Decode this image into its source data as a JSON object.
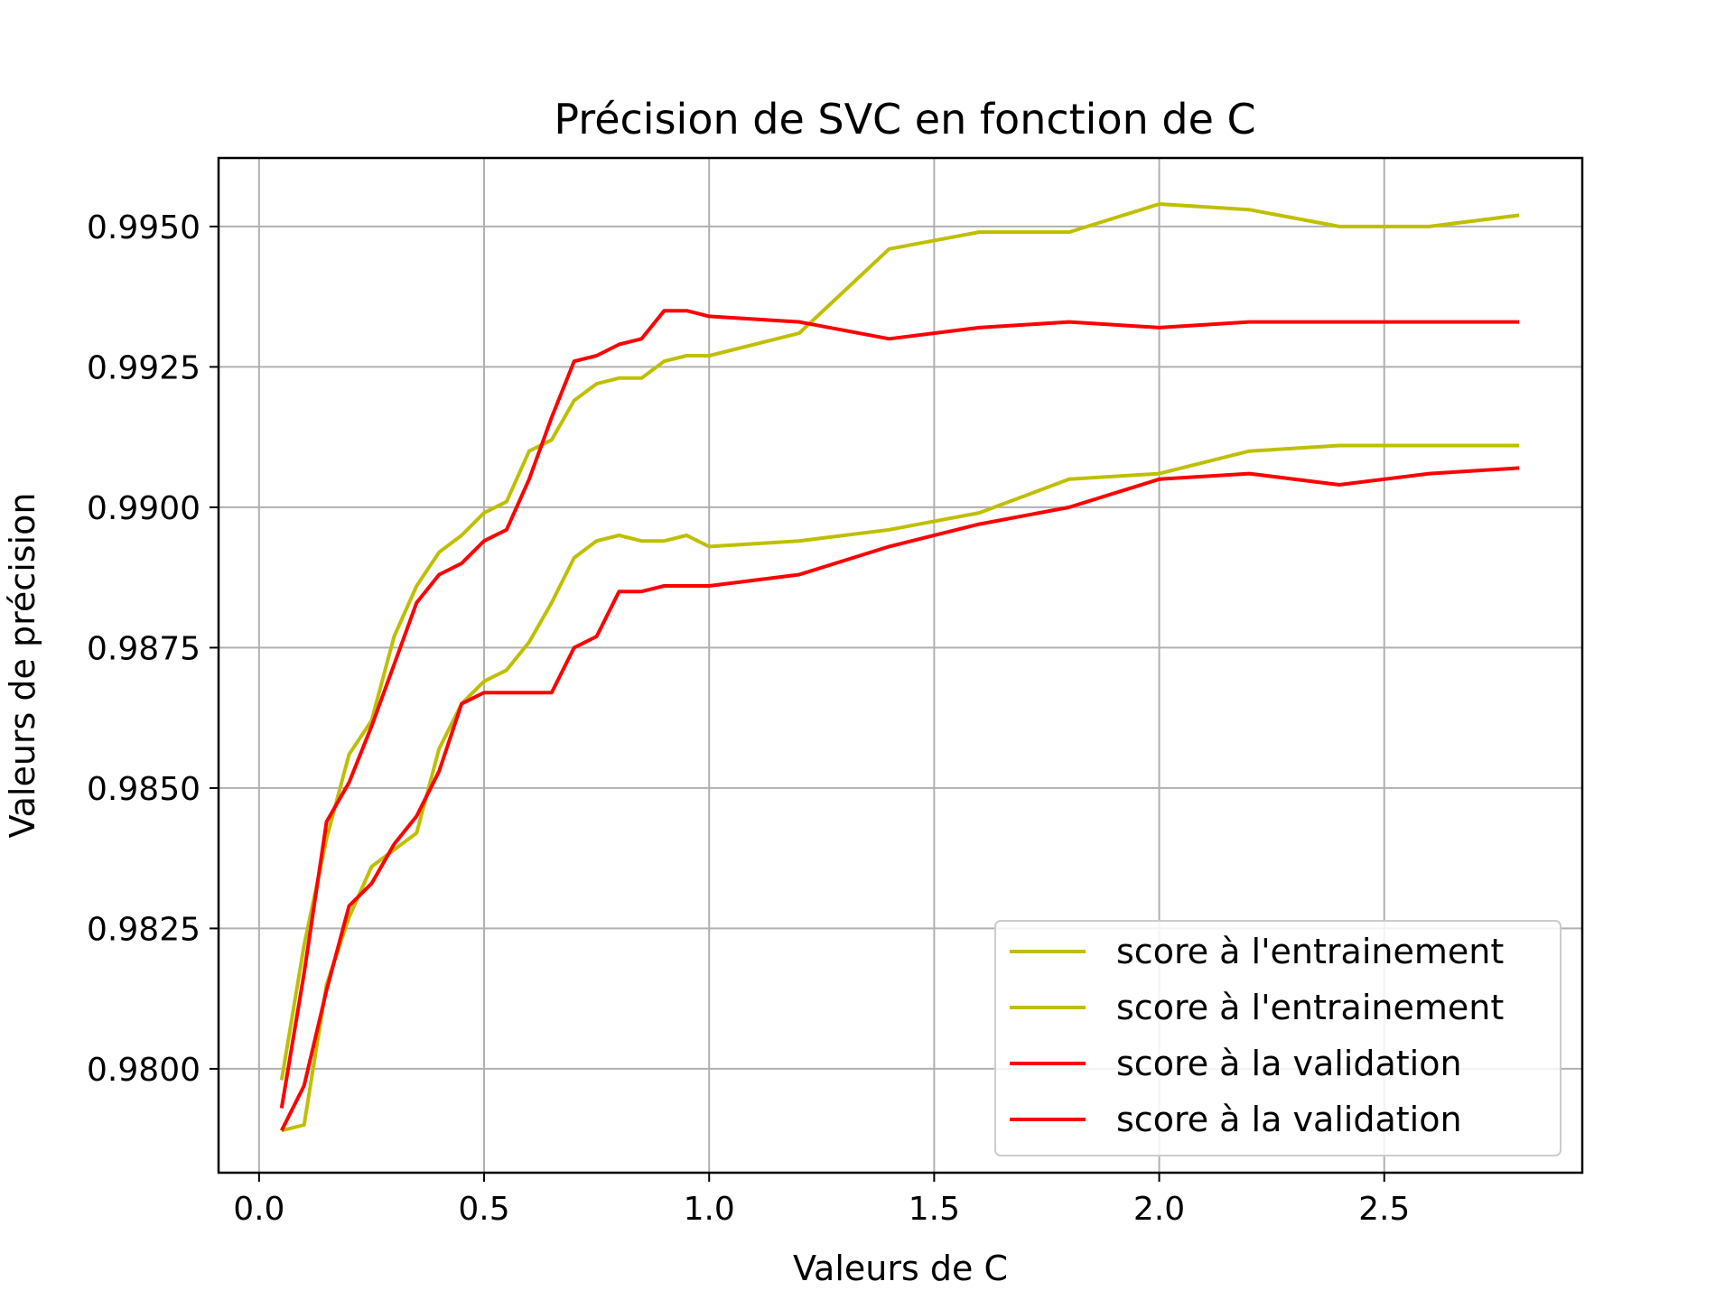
{
  "chart_data": {
    "type": "line",
    "title": "Précision de SVC en fonction de C",
    "xlabel": "Valeurs de C",
    "ylabel": "Valeurs de précision",
    "xlim": [
      -0.09,
      2.94
    ],
    "ylim": [
      0.97815,
      0.99622
    ],
    "xticks": [
      0.0,
      0.5,
      1.0,
      1.5,
      2.0,
      2.5
    ],
    "xtick_labels": [
      "0.0",
      "0.5",
      "1.0",
      "1.5",
      "2.0",
      "2.5"
    ],
    "yticks": [
      0.98,
      0.9825,
      0.985,
      0.9875,
      0.99,
      0.9925,
      0.995
    ],
    "ytick_labels": [
      "0.9800",
      "0.9825",
      "0.9850",
      "0.9875",
      "0.9900",
      "0.9925",
      "0.9950"
    ],
    "grid": true,
    "legend_position": "bottom-right",
    "x": [
      0.05,
      0.1,
      0.15,
      0.2,
      0.25,
      0.3,
      0.35,
      0.4,
      0.45,
      0.5,
      0.55,
      0.6,
      0.65,
      0.7,
      0.75,
      0.8,
      0.85,
      0.9,
      0.95,
      1.0,
      1.2,
      1.4,
      1.6,
      1.8,
      2.0,
      2.2,
      2.4,
      2.6,
      2.8
    ],
    "series": [
      {
        "name": "score à l'entrainement",
        "color": "#bfbf00",
        "values": [
          0.9798,
          0.9822,
          0.9841,
          0.9856,
          0.9862,
          0.9877,
          0.9886,
          0.9892,
          0.9895,
          0.9899,
          0.9901,
          0.991,
          0.9912,
          0.9919,
          0.9922,
          0.9923,
          0.9923,
          0.9926,
          0.9927,
          0.9927,
          0.9931,
          0.9946,
          0.9949,
          0.9949,
          0.9954,
          0.9953,
          0.995,
          0.995,
          0.9952
        ]
      },
      {
        "name": "score à l'entrainement",
        "color": "#bfbf00",
        "values": [
          0.9789,
          0.979,
          0.9815,
          0.9827,
          0.9836,
          0.9839,
          0.9842,
          0.9857,
          0.9865,
          0.9869,
          0.9871,
          0.9876,
          0.9883,
          0.9891,
          0.9894,
          0.9895,
          0.9894,
          0.9894,
          0.9895,
          0.9893,
          0.9894,
          0.9896,
          0.9899,
          0.9905,
          0.9906,
          0.991,
          0.9911,
          0.9911,
          0.9911
        ]
      },
      {
        "name": "score à la validation",
        "color": "#ff0000",
        "values": [
          0.9793,
          0.9817,
          0.9844,
          0.9851,
          0.9861,
          0.9872,
          0.9883,
          0.9888,
          0.989,
          0.9894,
          0.9896,
          0.9905,
          0.9916,
          0.9926,
          0.9927,
          0.9929,
          0.993,
          0.9935,
          0.9935,
          0.9934,
          0.9933,
          0.993,
          0.9932,
          0.9933,
          0.9932,
          0.9933,
          0.9933,
          0.9933,
          0.9933
        ]
      },
      {
        "name": "score à la validation",
        "color": "#ff0000",
        "values": [
          0.9789,
          0.9797,
          0.9814,
          0.9829,
          0.9833,
          0.984,
          0.9845,
          0.9853,
          0.9865,
          0.9867,
          0.9867,
          0.9867,
          0.9867,
          0.9875,
          0.9877,
          0.9885,
          0.9885,
          0.9886,
          0.9886,
          0.9886,
          0.9888,
          0.9893,
          0.9897,
          0.99,
          0.9905,
          0.9906,
          0.9904,
          0.9906,
          0.9907
        ]
      }
    ]
  }
}
